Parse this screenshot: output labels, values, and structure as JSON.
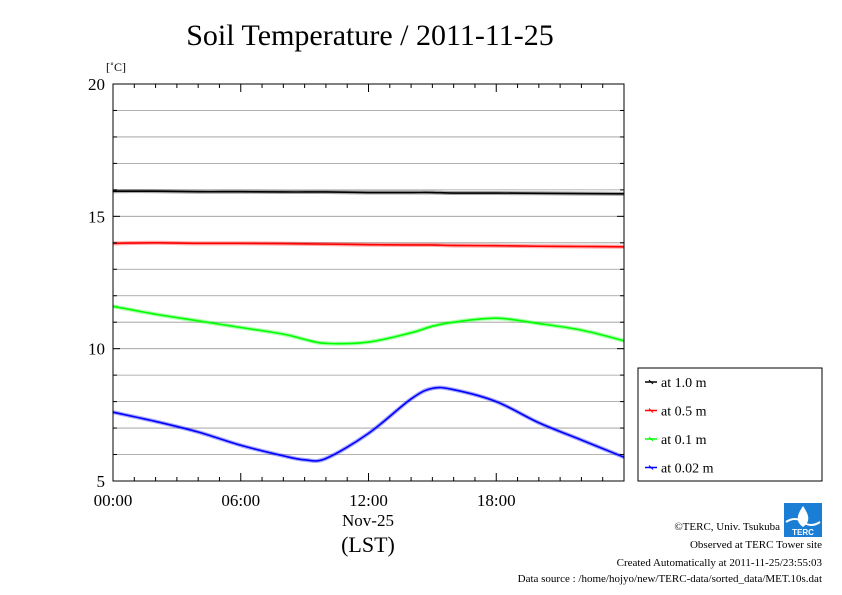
{
  "chart_data": {
    "type": "line",
    "title": "Soil Temperature / 2011-11-25",
    "ylabel": "[˚C]",
    "xlabel": "(LST)",
    "date_label": "Nov-25",
    "ylim": [
      5,
      20
    ],
    "yticks": [
      5,
      10,
      15,
      20
    ],
    "xlim": [
      0,
      24
    ],
    "xticks": [
      0,
      6,
      12,
      18
    ],
    "xtick_labels": [
      "00:00",
      "06:00",
      "12:00",
      "18:00"
    ],
    "grid": true,
    "legend_position": "right",
    "x": [
      0,
      2,
      4,
      6,
      8,
      9,
      10,
      12,
      14,
      15,
      16,
      18,
      20,
      22,
      24
    ],
    "series": [
      {
        "name": "at 1.0 m",
        "color": "#000000",
        "values": [
          15.95,
          15.95,
          15.93,
          15.93,
          15.92,
          15.92,
          15.92,
          15.9,
          15.9,
          15.9,
          15.88,
          15.88,
          15.87,
          15.86,
          15.85
        ]
      },
      {
        "name": "at 0.5 m",
        "color": "#ff0000",
        "values": [
          13.98,
          14.0,
          13.98,
          13.98,
          13.97,
          13.96,
          13.95,
          13.93,
          13.92,
          13.92,
          13.9,
          13.89,
          13.87,
          13.86,
          13.85
        ]
      },
      {
        "name": "at 0.1 m",
        "color": "#00ff00",
        "values": [
          11.6,
          11.3,
          11.05,
          10.8,
          10.55,
          10.35,
          10.2,
          10.25,
          10.6,
          10.85,
          11.0,
          11.15,
          10.95,
          10.7,
          10.3
        ]
      },
      {
        "name": "at 0.02 m",
        "color": "#0000ff",
        "values": [
          7.6,
          7.25,
          6.85,
          6.35,
          5.95,
          5.8,
          5.85,
          6.8,
          8.1,
          8.5,
          8.45,
          8.0,
          7.2,
          6.55,
          5.9
        ]
      }
    ]
  },
  "credits": {
    "copyright": "©TERC, Univ. Tsukuba",
    "observed": "Observed at TERC Tower site",
    "created": "Created Automatically at 2011-11-25/23:55:03",
    "source": "Data source : /home/hojyo/new/TERC-data/sorted_data/MET.10s.dat",
    "logo_text": "TERC"
  }
}
